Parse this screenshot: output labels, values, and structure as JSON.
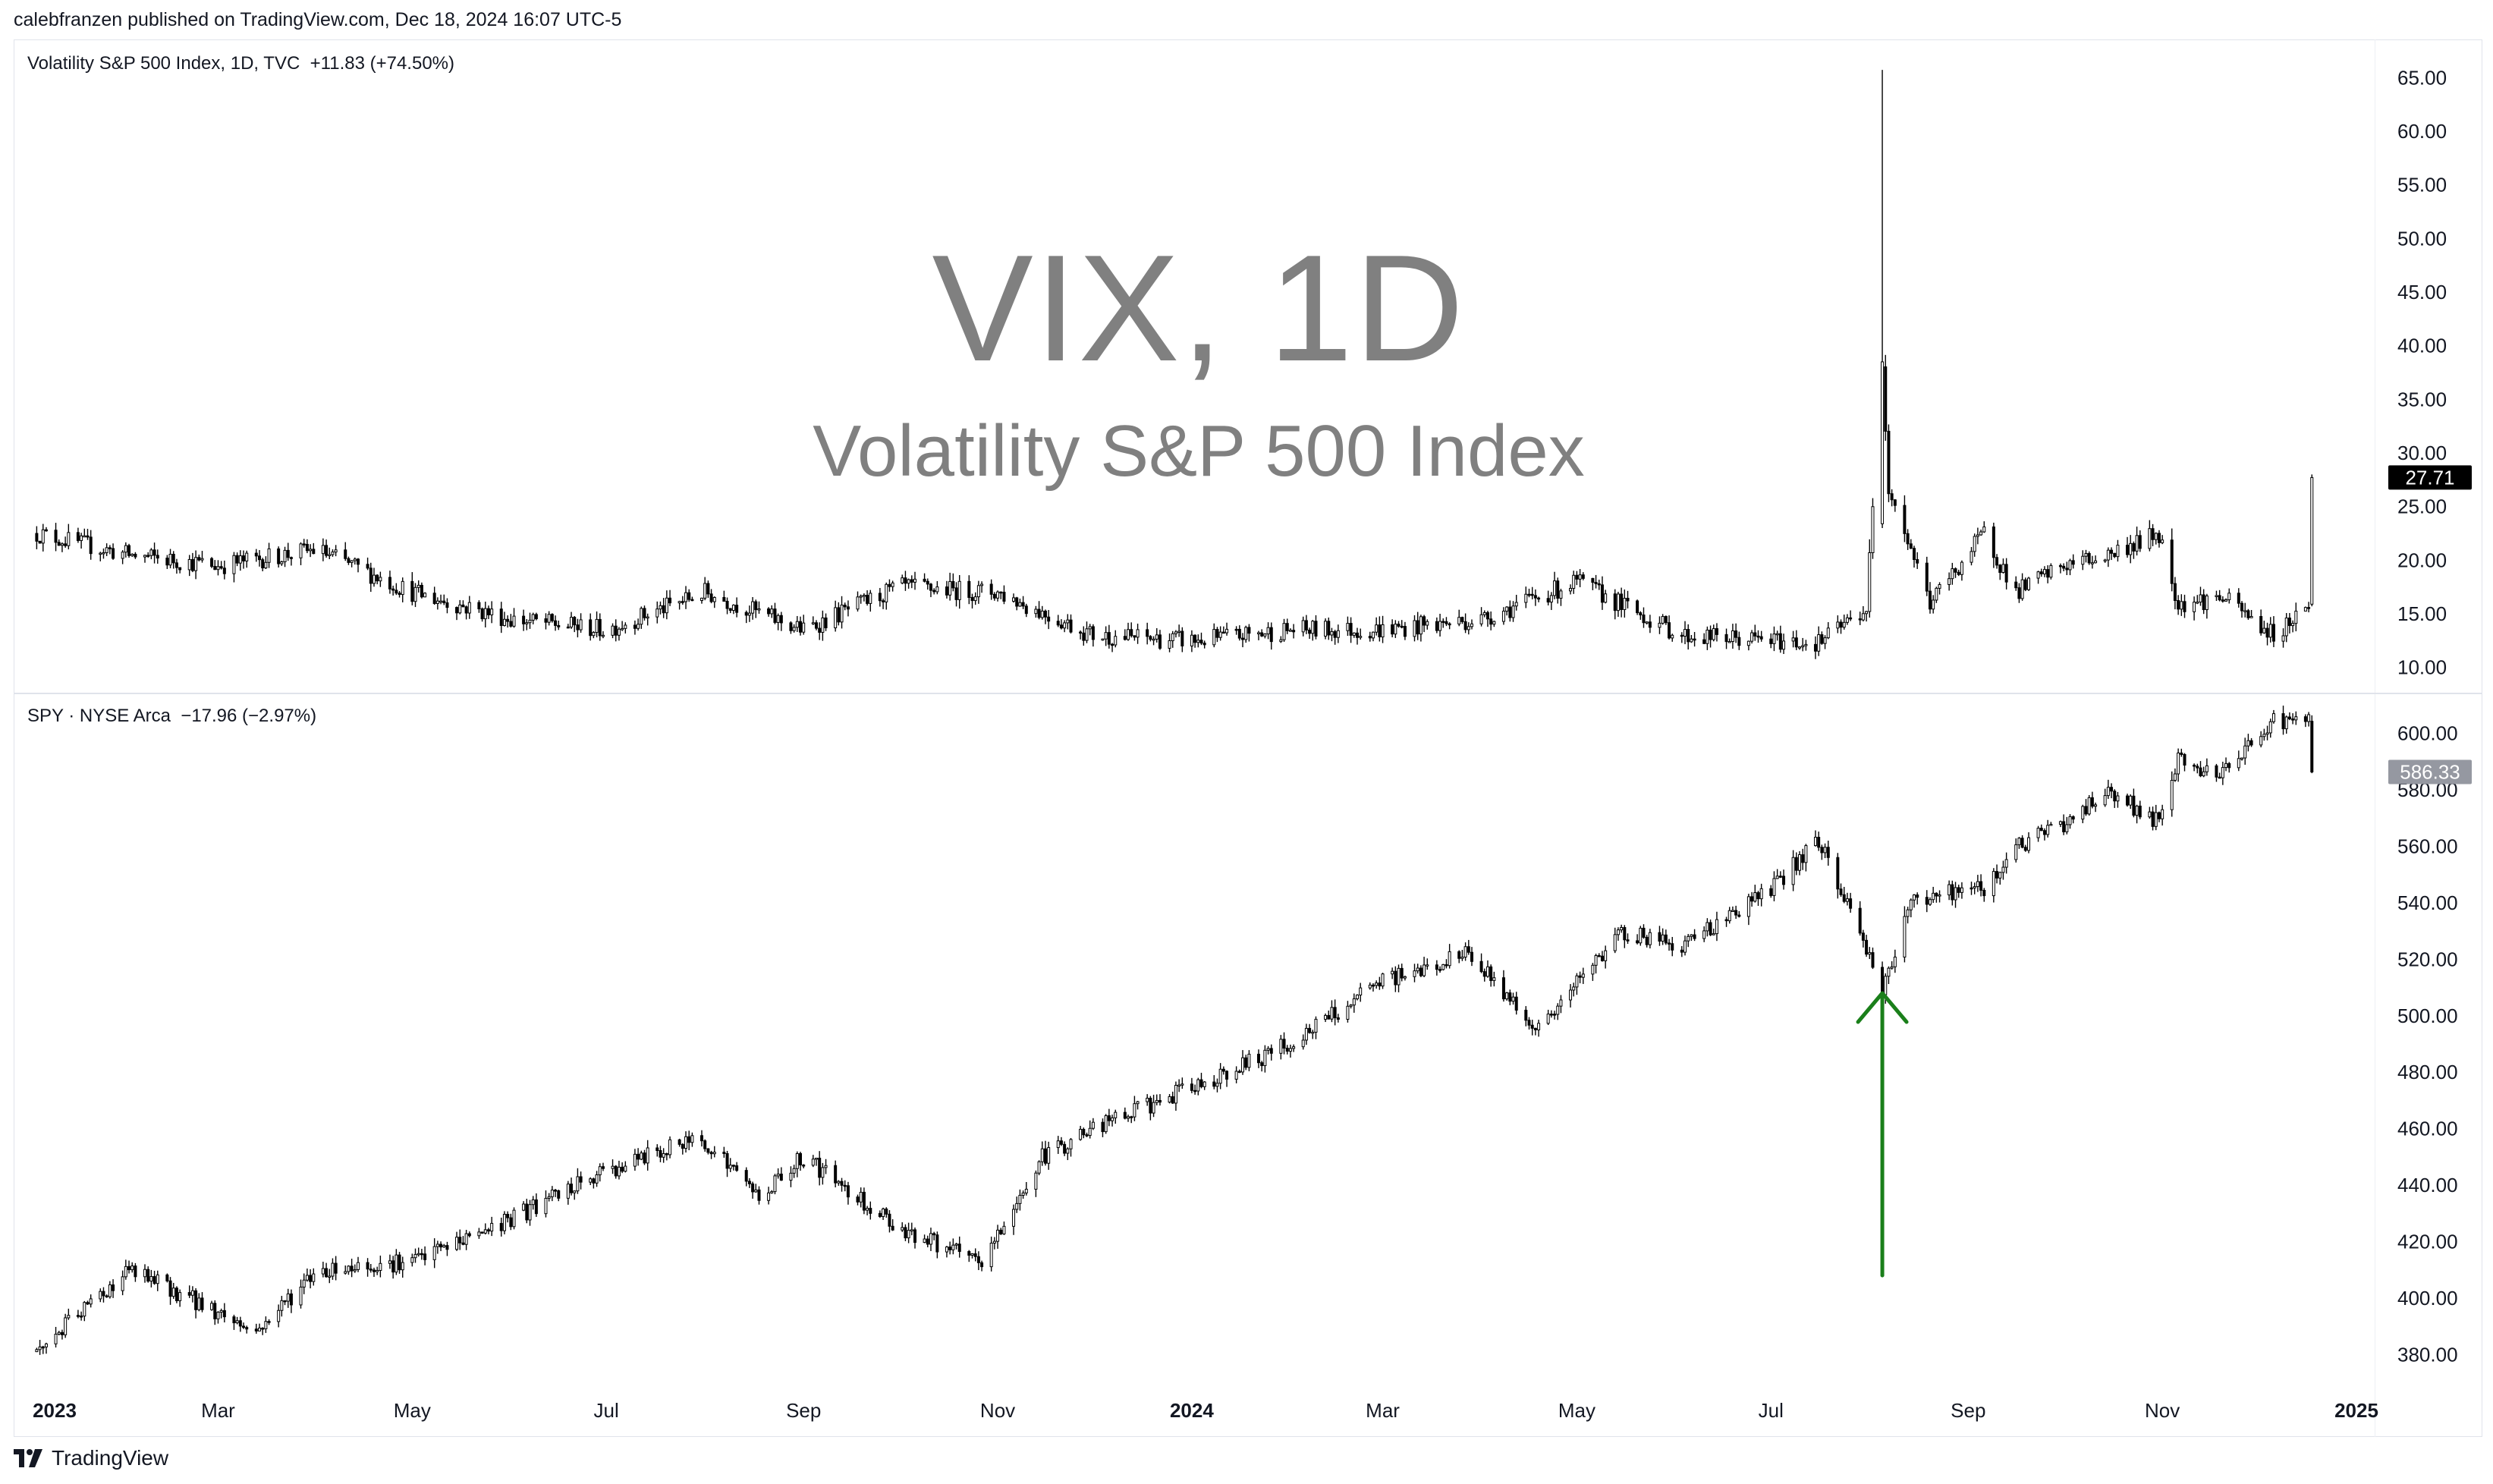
{
  "header": {
    "text": "calebfranzen published on TradingView.com, Dec 18, 2024 16:07 UTC-5"
  },
  "watermark": {
    "symbol": "VIX, 1D",
    "name": "Volatility S&P 500 Index"
  },
  "footer": {
    "brand": "TradingView",
    "icon": "tradingview-logo-icon"
  },
  "colors": {
    "candle": "#000000",
    "arrow": "#1a7f1a",
    "vix_badge": "#000000",
    "spy_badge": "#9598a1",
    "axis_text": "#131722"
  },
  "chart_data": [
    {
      "type": "candlestick",
      "title": "Volatility S&P 500 Index, 1D, TVC  +11.83 (+74.50%)",
      "last_value_label": "27.71",
      "ylim": [
        8,
        68
      ],
      "yticks": [
        "65.00",
        "60.00",
        "55.00",
        "50.00",
        "45.00",
        "40.00",
        "35.00",
        "30.00",
        "25.00",
        "20.00",
        "15.00",
        "10.00"
      ],
      "x": [
        "2023-01-03",
        "2023-02-01",
        "2023-03-01",
        "2023-04-01",
        "2023-05-01",
        "2023-06-01",
        "2023-07-01",
        "2023-08-01",
        "2023-09-01",
        "2023-10-01",
        "2023-11-01",
        "2023-12-01",
        "2024-01-02",
        "2024-02-01",
        "2024-03-01",
        "2024-04-01",
        "2024-05-01",
        "2024-06-03",
        "2024-07-01",
        "2024-07-16",
        "2024-07-31",
        "2024-08-05",
        "2024-08-07",
        "2024-08-20",
        "2024-09-06",
        "2024-09-16",
        "2024-10-01",
        "2024-10-15",
        "2024-10-31",
        "2024-11-06",
        "2024-11-20",
        "2024-12-06",
        "2024-12-17",
        "2024-12-18"
      ],
      "values": [
        22.5,
        20.5,
        19.5,
        21.0,
        17.0,
        14.5,
        13.5,
        17.0,
        13.5,
        17.5,
        17.0,
        13.0,
        12.5,
        13.5,
        13.5,
        14.5,
        18.0,
        13.0,
        12.5,
        12.3,
        15.5,
        38.5,
        27.0,
        16.0,
        22.5,
        17.0,
        19.5,
        20.5,
        22.5,
        16.0,
        16.5,
        13.0,
        15.9,
        27.71
      ],
      "annotations": [
        {
          "x": "2024-08-05",
          "intraday_high": 65.73
        }
      ]
    },
    {
      "type": "candlestick",
      "title": "SPY · NYSE Arca  −17.96 (−2.97%)",
      "last_value_label": "586.33",
      "ylim": [
        368,
        612
      ],
      "yticks": [
        "600.00",
        "580.00",
        "560.00",
        "540.00",
        "520.00",
        "500.00",
        "480.00",
        "460.00",
        "440.00",
        "420.00",
        "400.00",
        "380.00"
      ],
      "x": [
        "2023-01-03",
        "2023-02-01",
        "2023-02-20",
        "2023-03-13",
        "2023-04-01",
        "2023-05-01",
        "2023-06-01",
        "2023-07-01",
        "2023-07-31",
        "2023-08-18",
        "2023-09-01",
        "2023-10-01",
        "2023-10-27",
        "2023-11-15",
        "2023-12-01",
        "2024-01-02",
        "2024-02-01",
        "2024-03-01",
        "2024-03-28",
        "2024-04-19",
        "2024-05-15",
        "2024-06-03",
        "2024-07-01",
        "2024-07-16",
        "2024-07-25",
        "2024-08-05",
        "2024-08-15",
        "2024-09-06",
        "2024-09-16",
        "2024-10-01",
        "2024-10-15",
        "2024-10-31",
        "2024-11-06",
        "2024-11-20",
        "2024-12-06",
        "2024-12-17",
        "2024-12-18"
      ],
      "values": [
        381,
        410,
        400,
        388,
        410,
        413,
        428,
        445,
        457,
        436,
        450,
        425,
        412,
        450,
        460,
        475,
        490,
        512,
        522,
        495,
        530,
        525,
        545,
        562,
        540,
        510,
        542,
        545,
        560,
        568,
        580,
        568,
        590,
        585,
        605,
        604,
        586.33
      ],
      "xtick_labels": [
        "2023",
        "Mar",
        "May",
        "Jul",
        "Sep",
        "Nov",
        "2024",
        "Mar",
        "May",
        "Jul",
        "Sep",
        "Nov",
        "2025"
      ],
      "xtick_dates": [
        "2023-01-01",
        "2023-03-01",
        "2023-05-01",
        "2023-07-01",
        "2023-09-01",
        "2023-11-01",
        "2024-01-01",
        "2024-03-01",
        "2024-05-01",
        "2024-07-01",
        "2024-09-01",
        "2024-11-01",
        "2025-01-01"
      ],
      "bold_ticks": [
        "2023",
        "2024",
        "2025"
      ],
      "annotations": [
        {
          "type": "arrow",
          "x": "2024-08-05",
          "from_value": 408,
          "to_value": 508,
          "color": "#1a7f1a"
        }
      ]
    }
  ]
}
